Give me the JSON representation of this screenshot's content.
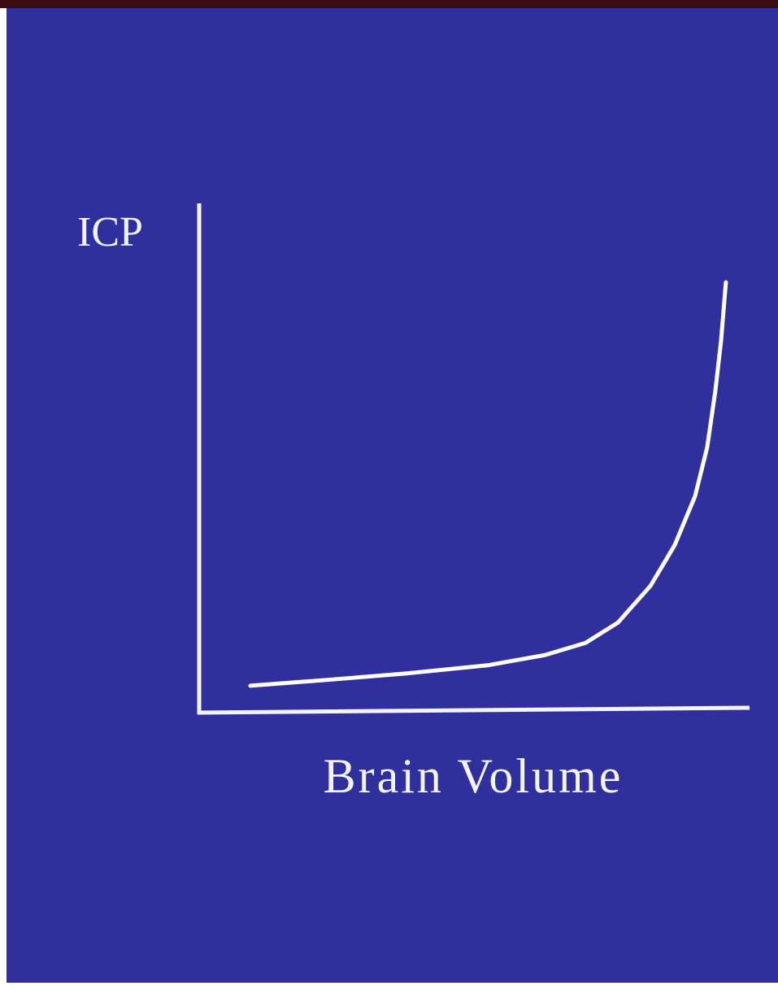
{
  "chart_data": {
    "type": "line",
    "ylabel": "ICP",
    "xlabel": "Brain Volume",
    "xlim": [
      0,
      100
    ],
    "ylim": [
      0,
      100
    ],
    "x": [
      9.3,
      22.9,
      37.7,
      52.4,
      62.8,
      70.2,
      76.1,
      82.0,
      86.4,
      90.1,
      92.3,
      93.8,
      94.8,
      95.7
    ],
    "series": [
      {
        "color": "#ffffff",
        "values": [
          5.3,
          6.4,
          7.7,
          9.3,
          11.3,
          13.7,
          17.7,
          24.9,
          32.9,
          42.5,
          52.1,
          63.3,
          72.8,
          84.5
        ]
      }
    ]
  }
}
